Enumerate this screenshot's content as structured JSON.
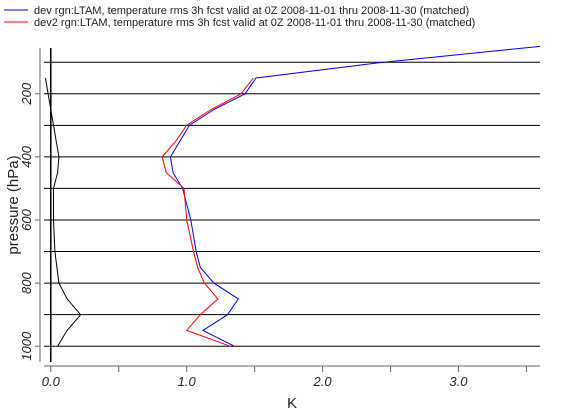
{
  "chart_data": {
    "type": "line",
    "xlabel": "K",
    "ylabel": "pressure (hPa)",
    "xlim": [
      -0.05,
      3.6
    ],
    "ylim": [
      1050,
      55
    ],
    "y_axis_inverted": true,
    "grid": "horizontal",
    "legend_position": "top-left",
    "x_ticks": [
      {
        "value": 0.0,
        "label": "0.0"
      },
      {
        "value": 0.5,
        "label": ""
      },
      {
        "value": 1.0,
        "label": "1.0"
      },
      {
        "value": 1.5,
        "label": ""
      },
      {
        "value": 2.0,
        "label": "2.0"
      },
      {
        "value": 2.5,
        "label": ""
      },
      {
        "value": 3.0,
        "label": "3.0"
      },
      {
        "value": 3.5,
        "label": ""
      }
    ],
    "y_ticks": [
      {
        "value": 200,
        "label": "200"
      },
      {
        "value": 400,
        "label": "400"
      },
      {
        "value": 600,
        "label": "600"
      },
      {
        "value": 800,
        "label": "800"
      },
      {
        "value": 1000,
        "label": "1000"
      }
    ],
    "grid_levels": [
      100,
      200,
      300,
      400,
      500,
      600,
      700,
      800,
      900,
      1000
    ],
    "series": [
      {
        "name": "dev rgn:LTAM, temperature rms 3h fcst valid at 0Z 2008-11-01 thru 2008-11-30 (matched)",
        "color": "#0000ff",
        "points": [
          {
            "x": 1.35,
            "y": 1000
          },
          {
            "x": 1.12,
            "y": 950
          },
          {
            "x": 1.3,
            "y": 900
          },
          {
            "x": 1.38,
            "y": 850
          },
          {
            "x": 1.2,
            "y": 800
          },
          {
            "x": 1.1,
            "y": 750
          },
          {
            "x": 1.07,
            "y": 700
          },
          {
            "x": 1.03,
            "y": 600
          },
          {
            "x": 0.97,
            "y": 500
          },
          {
            "x": 0.9,
            "y": 450
          },
          {
            "x": 0.88,
            "y": 400
          },
          {
            "x": 0.95,
            "y": 350
          },
          {
            "x": 1.02,
            "y": 300
          },
          {
            "x": 1.2,
            "y": 250
          },
          {
            "x": 1.43,
            "y": 200
          },
          {
            "x": 1.51,
            "y": 150
          },
          {
            "x": 2.45,
            "y": 100
          },
          {
            "x": 3.6,
            "y": 50
          }
        ]
      },
      {
        "name": "dev2 rgn:LTAM, temperature rms 3h fcst valid at 0Z 2008-11-01 thru 2008-11-30 (matched)",
        "color": "#ff0000",
        "points": [
          {
            "x": 1.32,
            "y": 1000
          },
          {
            "x": 1.0,
            "y": 950
          },
          {
            "x": 1.1,
            "y": 900
          },
          {
            "x": 1.23,
            "y": 850
          },
          {
            "x": 1.13,
            "y": 800
          },
          {
            "x": 1.08,
            "y": 750
          },
          {
            "x": 1.05,
            "y": 700
          },
          {
            "x": 1.0,
            "y": 600
          },
          {
            "x": 0.98,
            "y": 500
          },
          {
            "x": 0.85,
            "y": 450
          },
          {
            "x": 0.82,
            "y": 400
          },
          {
            "x": 0.92,
            "y": 350
          },
          {
            "x": 1.0,
            "y": 300
          },
          {
            "x": 1.18,
            "y": 250
          },
          {
            "x": 1.4,
            "y": 200
          },
          {
            "x": 1.49,
            "y": 150
          }
        ]
      },
      {
        "name": "",
        "color": "#000000",
        "points": [
          {
            "x": 0.05,
            "y": 1000
          },
          {
            "x": 0.12,
            "y": 950
          },
          {
            "x": 0.22,
            "y": 900
          },
          {
            "x": 0.12,
            "y": 850
          },
          {
            "x": 0.06,
            "y": 800
          },
          {
            "x": 0.03,
            "y": 700
          },
          {
            "x": 0.02,
            "y": 600
          },
          {
            "x": 0.02,
            "y": 500
          },
          {
            "x": 0.05,
            "y": 450
          },
          {
            "x": 0.06,
            "y": 400
          },
          {
            "x": 0.04,
            "y": 350
          },
          {
            "x": 0.02,
            "y": 300
          },
          {
            "x": 0.0,
            "y": 250
          },
          {
            "x": -0.02,
            "y": 200
          },
          {
            "x": -0.04,
            "y": 150
          }
        ]
      }
    ]
  }
}
